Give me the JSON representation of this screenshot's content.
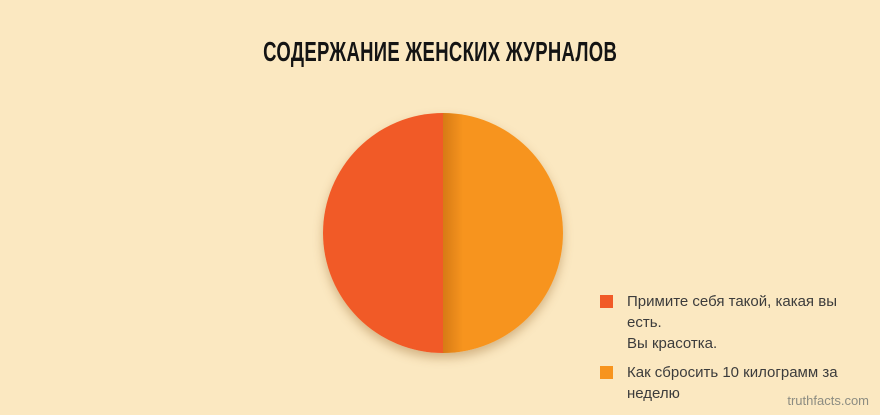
{
  "page": {
    "background_color": "#FBE8C1"
  },
  "title": "СОДЕРЖАНИЕ ЖЕНСКИХ ЖУРНАЛОВ",
  "watermark": "truthfacts.com",
  "chart_data": {
    "type": "pie",
    "title": "СОДЕРЖАНИЕ ЖЕНСКИХ ЖУРНАЛОВ",
    "legend_position": "right",
    "grid": false,
    "slices": [
      {
        "label": "Примите себя такой, какая вы есть. Вы красотка.",
        "value": 50,
        "color": "#F15A27"
      },
      {
        "label": "Как сбросить 10 килограмм за неделю",
        "value": 50,
        "color": "#F7941E"
      }
    ]
  },
  "legend": {
    "items": [
      {
        "lines": [
          "Примите себя такой, какая вы есть.",
          "Вы красотка."
        ],
        "color": "#F15A27"
      },
      {
        "lines": [
          "Как сбросить 10 килограмм за неделю"
        ],
        "color": "#F7941E"
      }
    ]
  }
}
